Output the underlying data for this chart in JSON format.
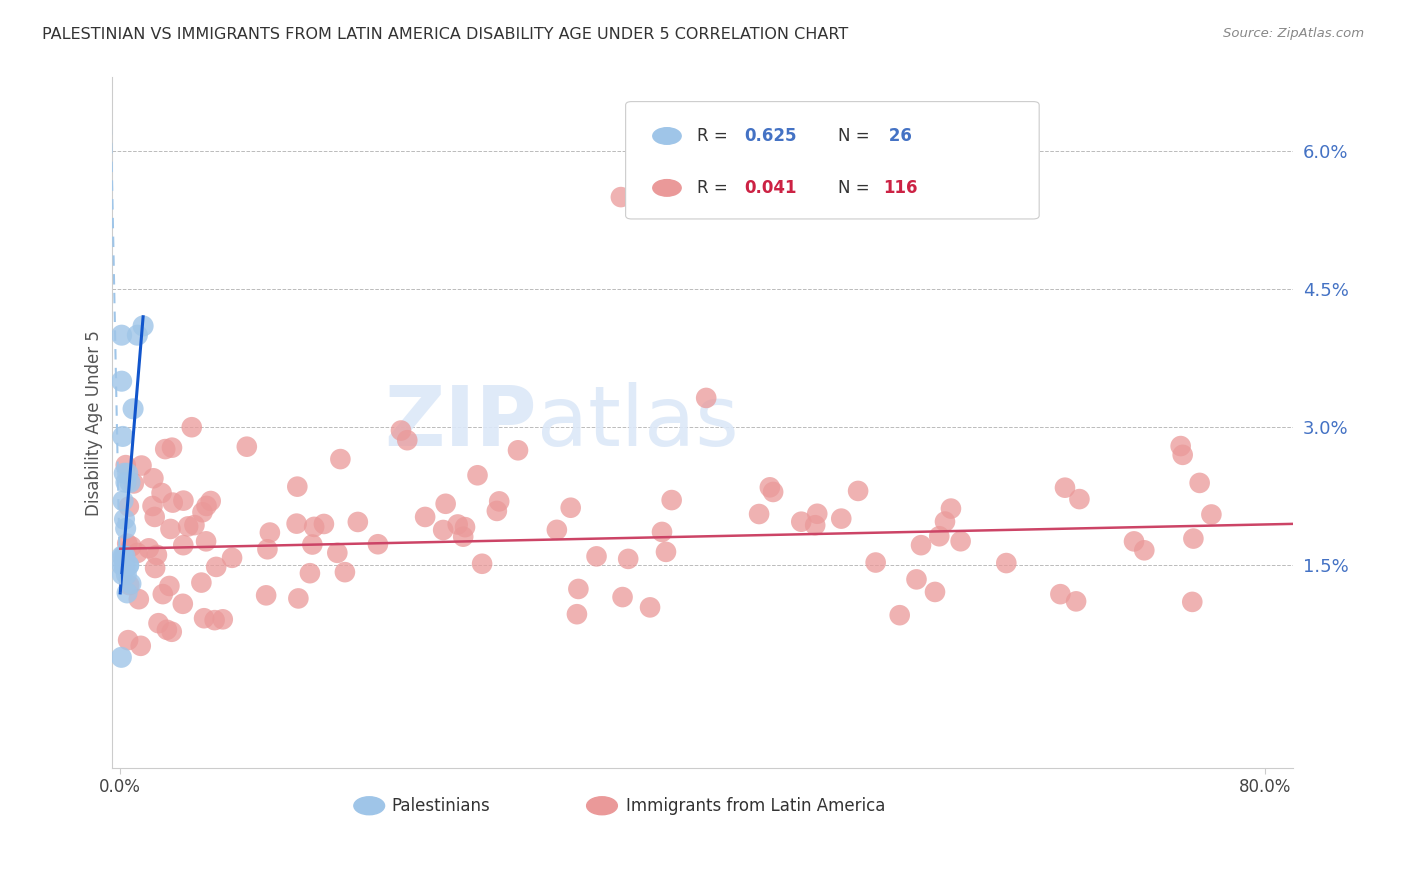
{
  "title": "PALESTINIAN VS IMMIGRANTS FROM LATIN AMERICA DISABILITY AGE UNDER 5 CORRELATION CHART",
  "source": "Source: ZipAtlas.com",
  "ylabel": "Disability Age Under 5",
  "color_blue": "#9fc5e8",
  "color_blue_trend": "#1155cc",
  "color_pink": "#ea9999",
  "color_pink_trend": "#cc4466",
  "watermark_color": "#dce8f8",
  "r1": "0.625",
  "n1": "26",
  "r2": "0.041",
  "n2": "116",
  "label1": "Palestinians",
  "label2": "Immigrants from Latin America",
  "xlim": [
    -0.006,
    0.82
  ],
  "ylim": [
    -0.007,
    0.068
  ],
  "ytick_vals": [
    0.015,
    0.03,
    0.045,
    0.06
  ],
  "ytick_labels": [
    "1.5%",
    "3.0%",
    "4.5%",
    "6.0%"
  ],
  "xtick_vals": [
    0.0,
    0.8
  ],
  "xtick_labels": [
    "0.0%",
    "80.0%"
  ]
}
